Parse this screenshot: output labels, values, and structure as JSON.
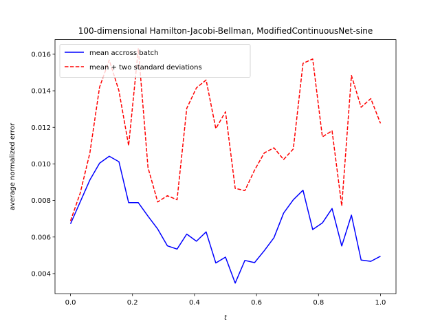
{
  "chart_data": {
    "type": "line",
    "title": "100-dimensional Hamilton-Jacobi-Bellman, ModifiedContinuousNet-sine",
    "xlabel": "t",
    "ylabel": "average normalized error",
    "xlim": [
      -0.05,
      1.05
    ],
    "ylim": [
      0.0029,
      0.0168
    ],
    "xticks": [
      "0.0",
      "0.2",
      "0.4",
      "0.6",
      "0.8",
      "1.0"
    ],
    "xtick_values": [
      0.0,
      0.2,
      0.4,
      0.6,
      0.8,
      1.0
    ],
    "yticks": [
      "0.004",
      "0.006",
      "0.008",
      "0.010",
      "0.012",
      "0.014",
      "0.016"
    ],
    "ytick_values": [
      0.004,
      0.006,
      0.008,
      0.01,
      0.012,
      0.014,
      0.016
    ],
    "grid": false,
    "legend_position": "upper left",
    "x": [
      0.0,
      0.03125,
      0.0625,
      0.09375,
      0.125,
      0.15625,
      0.1875,
      0.21875,
      0.25,
      0.28125,
      0.3125,
      0.34375,
      0.375,
      0.40625,
      0.4375,
      0.46875,
      0.5,
      0.53125,
      0.5625,
      0.59375,
      0.625,
      0.65625,
      0.6875,
      0.71875,
      0.75,
      0.78125,
      0.8125,
      0.84375,
      0.875,
      0.90625,
      0.9375,
      0.96875,
      1.0
    ],
    "series": [
      {
        "name": "mean accross batch",
        "color": "#0000ff",
        "dash": "solid",
        "values": [
          0.00672,
          0.00792,
          0.00912,
          0.01004,
          0.01042,
          0.01012,
          0.00788,
          0.00788,
          0.00714,
          0.00644,
          0.00552,
          0.00534,
          0.00616,
          0.00577,
          0.00628,
          0.00458,
          0.0049,
          0.00348,
          0.00472,
          0.0046,
          0.00525,
          0.00596,
          0.00731,
          0.00804,
          0.00856,
          0.00641,
          0.00677,
          0.00756,
          0.00551,
          0.0072,
          0.00474,
          0.00467,
          0.00495
        ]
      },
      {
        "name": "mean + two standard deviations",
        "color": "#ff0000",
        "dash": "dashed",
        "values": [
          0.00688,
          0.0084,
          0.0106,
          0.0142,
          0.01568,
          0.014,
          0.011,
          0.0163,
          0.0098,
          0.00792,
          0.00826,
          0.00804,
          0.01304,
          0.01416,
          0.01459,
          0.01193,
          0.01285,
          0.00866,
          0.00854,
          0.00966,
          0.0106,
          0.01088,
          0.01024,
          0.01082,
          0.0155,
          0.01574,
          0.01148,
          0.01181,
          0.0077,
          0.01484,
          0.0131,
          0.01357,
          0.01222
        ]
      }
    ]
  }
}
